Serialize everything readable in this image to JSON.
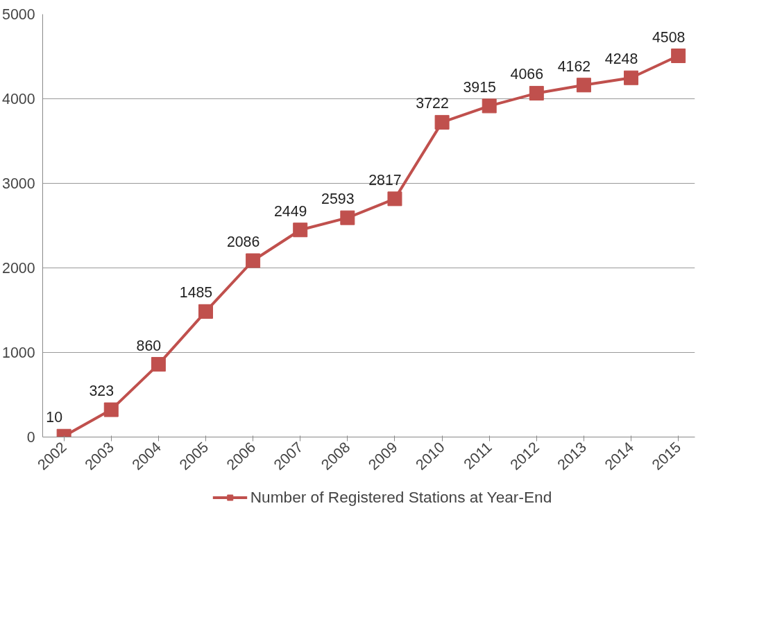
{
  "chart_data": {
    "type": "line",
    "categories": [
      "2002",
      "2003",
      "2004",
      "2005",
      "2006",
      "2007",
      "2008",
      "2009",
      "2010",
      "2011",
      "2012",
      "2013",
      "2014",
      "2015"
    ],
    "series": [
      {
        "name": "Number of Registered Stations at Year-End",
        "color": "#c0504d",
        "values": [
          10,
          323,
          860,
          1485,
          2086,
          2449,
          2593,
          2817,
          3722,
          3915,
          4066,
          4162,
          4248,
          4508
        ]
      }
    ],
    "ylim": [
      0,
      5000
    ],
    "yticks": [
      0,
      1000,
      2000,
      3000,
      4000,
      5000
    ],
    "grid": "y",
    "legend": "bottom",
    "marker": "square",
    "line_style": "solid",
    "data_labels": true
  }
}
